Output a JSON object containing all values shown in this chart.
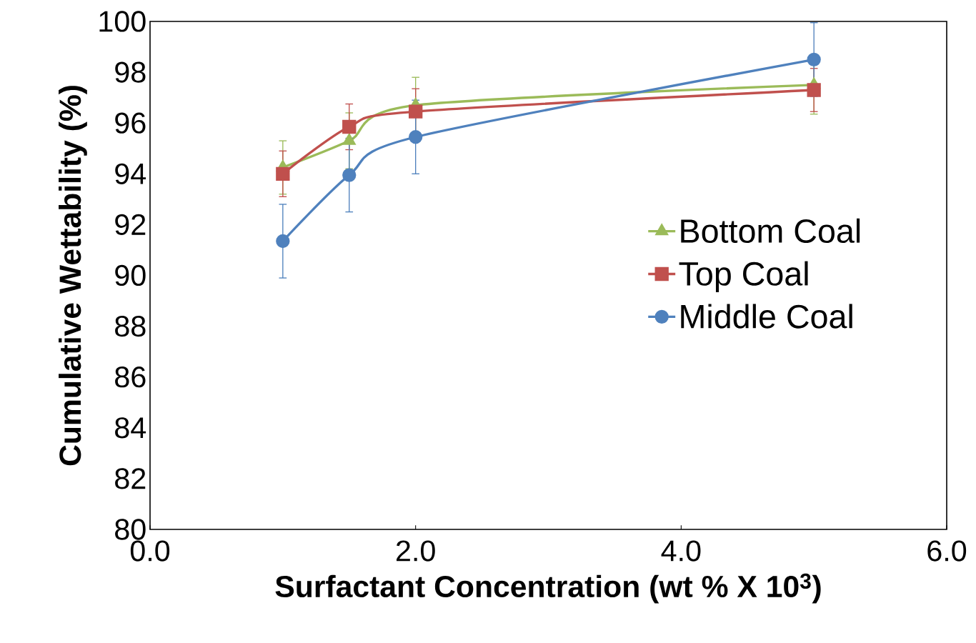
{
  "chart_data": {
    "type": "line",
    "xlabel": "Surfactant Concentration (wt % X 10$^{3}$)",
    "ylabel": "Cumulative Wettability (%)",
    "x": [
      1,
      1.5,
      2,
      5
    ],
    "series": [
      {
        "name": "Bottom Coal",
        "color": "#9bbb59",
        "marker": "triangle",
        "values": [
          94.25,
          95.3,
          96.7,
          97.5
        ],
        "errors": [
          1.05,
          1.1,
          1.1,
          1.15
        ]
      },
      {
        "name": "Top Coal",
        "color": "#c0504d",
        "marker": "square",
        "values": [
          94.0,
          95.85,
          96.45,
          97.3
        ],
        "errors": [
          0.9,
          0.9,
          0.9,
          0.85
        ]
      },
      {
        "name": "Middle Coal",
        "color": "#4f81bd",
        "marker": "circle",
        "values": [
          91.35,
          93.95,
          95.45,
          98.5
        ],
        "errors": [
          1.45,
          1.45,
          1.45,
          1.45
        ]
      }
    ],
    "xlim": [
      0,
      6
    ],
    "ylim": [
      80,
      100
    ],
    "xticks": [
      {
        "value": 0,
        "label": "0.0"
      },
      {
        "value": 2,
        "label": "2.0"
      },
      {
        "value": 4,
        "label": "4.0"
      },
      {
        "value": 6,
        "label": "6.0"
      }
    ],
    "yticks": [
      80,
      82,
      84,
      86,
      88,
      90,
      92,
      94,
      96,
      98,
      100
    ],
    "grid": false,
    "legend": "right",
    "line_style": "solid"
  }
}
